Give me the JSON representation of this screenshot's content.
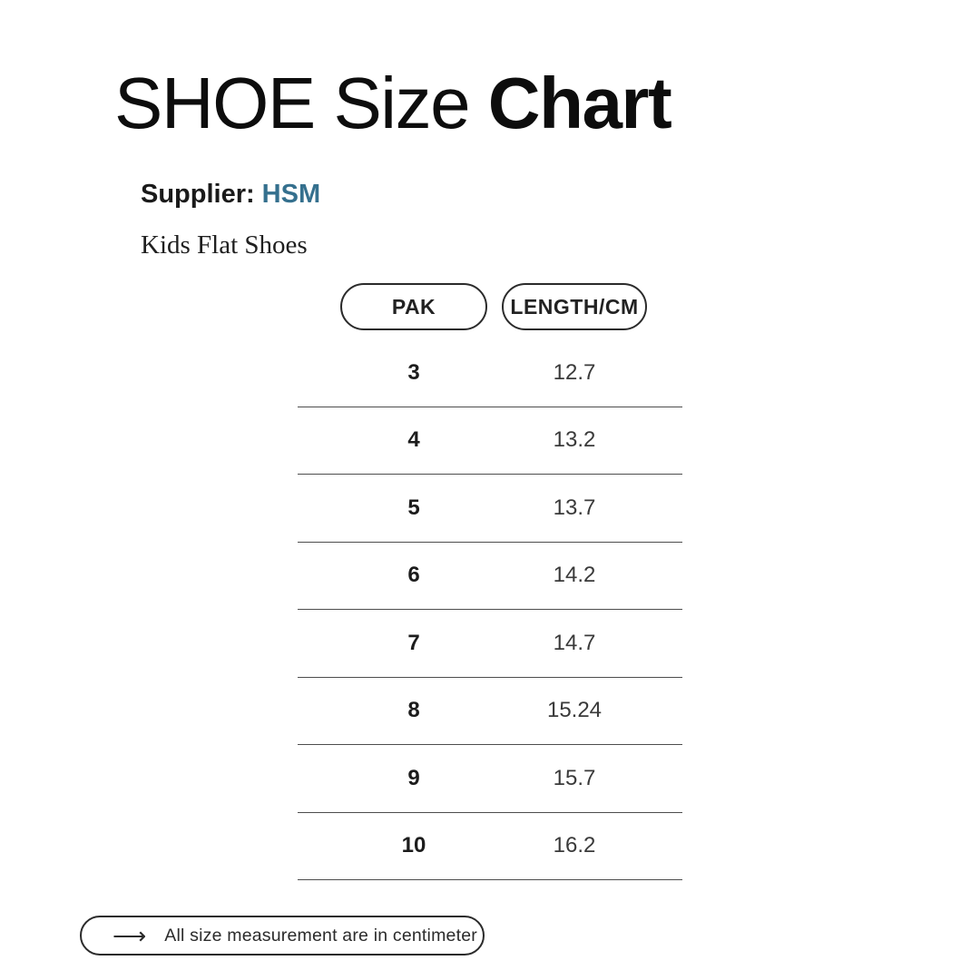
{
  "page": {
    "background_color": "#ffffff"
  },
  "title": {
    "regular_part": "SHOE Size ",
    "bold_part": "Chart"
  },
  "supplier": {
    "label": "Supplier:",
    "value": "HSM",
    "value_color": "#35708e"
  },
  "product_name": "Kids Flat Shoes",
  "table": {
    "headers": [
      "PAK",
      "LENGTH/CM"
    ],
    "rows": [
      {
        "pak": "3",
        "length": "12.7"
      },
      {
        "pak": "4",
        "length": "13.2"
      },
      {
        "pak": "5",
        "length": "13.7"
      },
      {
        "pak": "6",
        "length": "14.2"
      },
      {
        "pak": "7",
        "length": "14.7"
      },
      {
        "pak": "8",
        "length": "15.24"
      },
      {
        "pak": "9",
        "length": "15.7"
      },
      {
        "pak": "10",
        "length": "16.2"
      }
    ]
  },
  "footer": {
    "arrow": "⟶",
    "note": "All size measurement are in centimeter"
  },
  "chart_data": {
    "type": "table",
    "title": "SHOE Size Chart",
    "subtitle": "Supplier: HSM — Kids Flat Shoes",
    "columns": [
      "PAK",
      "LENGTH/CM"
    ],
    "rows": [
      [
        3,
        12.7
      ],
      [
        4,
        13.2
      ],
      [
        5,
        13.7
      ],
      [
        6,
        14.2
      ],
      [
        7,
        14.7
      ],
      [
        8,
        15.24
      ],
      [
        9,
        15.7
      ],
      [
        10,
        16.2
      ]
    ],
    "note": "All size measurement are in centimeter"
  }
}
